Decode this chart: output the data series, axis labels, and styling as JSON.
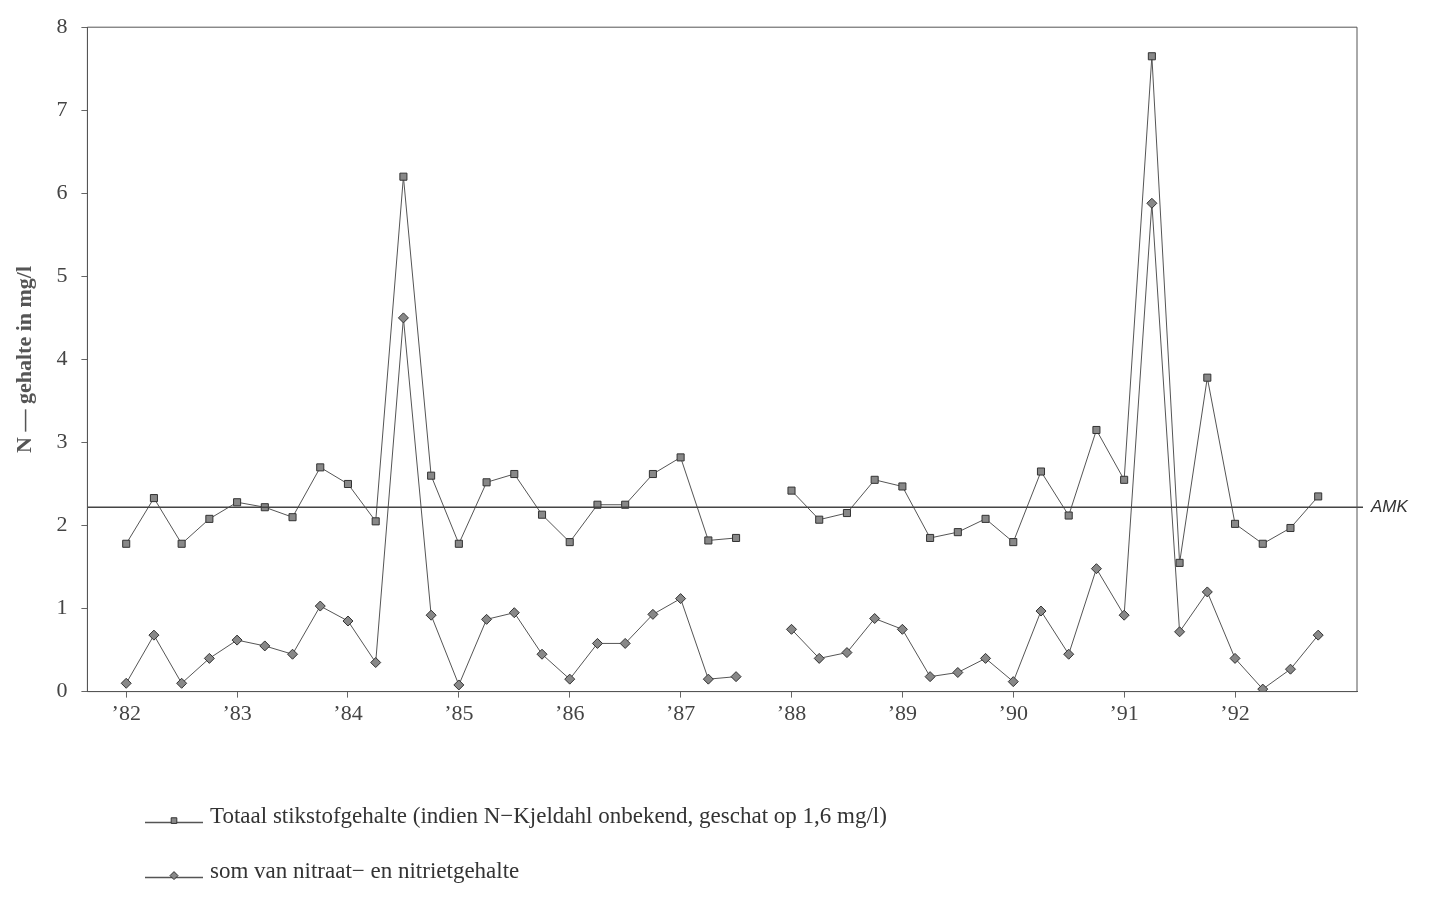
{
  "chart_data": {
    "type": "line",
    "ylabel": "N — gehalte in mg/l",
    "x": [
      1982,
      1982.25,
      1982.5,
      1982.75,
      1983,
      1983.25,
      1983.5,
      1983.75,
      1984,
      1984.25,
      1984.5,
      1984.75,
      1985,
      1985.25,
      1985.5,
      1985.75,
      1986,
      1986.25,
      1986.5,
      1986.75,
      1987,
      1987.25,
      1987.5,
      1987.75,
      1988,
      1988.25,
      1988.5,
      1988.75,
      1989,
      1989.25,
      1989.5,
      1989.75,
      1990,
      1990.25,
      1990.5,
      1990.75,
      1991,
      1991.25,
      1991.5,
      1991.75,
      1992,
      1992.25,
      1992.5,
      1992.75
    ],
    "series": [
      {
        "name": "Totaal stikstofgehalte (indien N−Kjeldahl onbekend, geschat op 1,6 mg/l)",
        "color": "#555555",
        "marker": "square",
        "values": [
          1.78,
          2.33,
          1.78,
          2.08,
          2.28,
          2.22,
          2.1,
          2.7,
          2.5,
          2.05,
          6.2,
          2.6,
          1.78,
          2.52,
          2.62,
          2.13,
          1.8,
          2.25,
          2.25,
          2.62,
          2.82,
          1.82,
          1.85,
          null,
          2.42,
          2.07,
          2.15,
          2.55,
          2.47,
          1.85,
          1.92,
          2.08,
          1.8,
          2.65,
          2.12,
          3.15,
          2.55,
          7.65,
          1.55,
          3.78,
          2.02,
          1.78,
          1.97,
          2.35
        ]
      },
      {
        "name": "som van nitraat− en nitrietgehalte",
        "color": "#555555",
        "marker": "diamond",
        "values": [
          0.1,
          0.68,
          0.1,
          0.4,
          0.62,
          0.55,
          0.45,
          1.03,
          0.85,
          0.35,
          4.5,
          0.92,
          0.08,
          0.87,
          0.95,
          0.45,
          0.15,
          0.58,
          0.58,
          0.93,
          1.12,
          0.15,
          0.18,
          null,
          0.75,
          0.4,
          0.47,
          0.88,
          0.75,
          0.18,
          0.23,
          0.4,
          0.12,
          0.97,
          0.45,
          1.48,
          0.92,
          5.88,
          0.72,
          1.2,
          0.4,
          0.03,
          0.27,
          0.68
        ]
      }
    ],
    "xlim": [
      1981.65,
      1993.1
    ],
    "xticks": [
      {
        "value": 1982,
        "label": "’82"
      },
      {
        "value": 1983,
        "label": "’83"
      },
      {
        "value": 1984,
        "label": "’84"
      },
      {
        "value": 1985,
        "label": "’85"
      },
      {
        "value": 1986,
        "label": "’86"
      },
      {
        "value": 1987,
        "label": "’87"
      },
      {
        "value": 1988,
        "label": "’88"
      },
      {
        "value": 1989,
        "label": "’89"
      },
      {
        "value": 1990,
        "label": "’90"
      },
      {
        "value": 1991,
        "label": "’91"
      },
      {
        "value": 1992,
        "label": "’92"
      }
    ],
    "ylim": [
      0,
      8
    ],
    "yticks": [
      0,
      1,
      2,
      3,
      4,
      5,
      6,
      7,
      8
    ],
    "ref_lines": [
      {
        "axis": "y",
        "value": 2.22,
        "label": "AMK",
        "color": "#444444"
      }
    ],
    "grid": false,
    "legend": "bottom",
    "line_style": "solid"
  }
}
